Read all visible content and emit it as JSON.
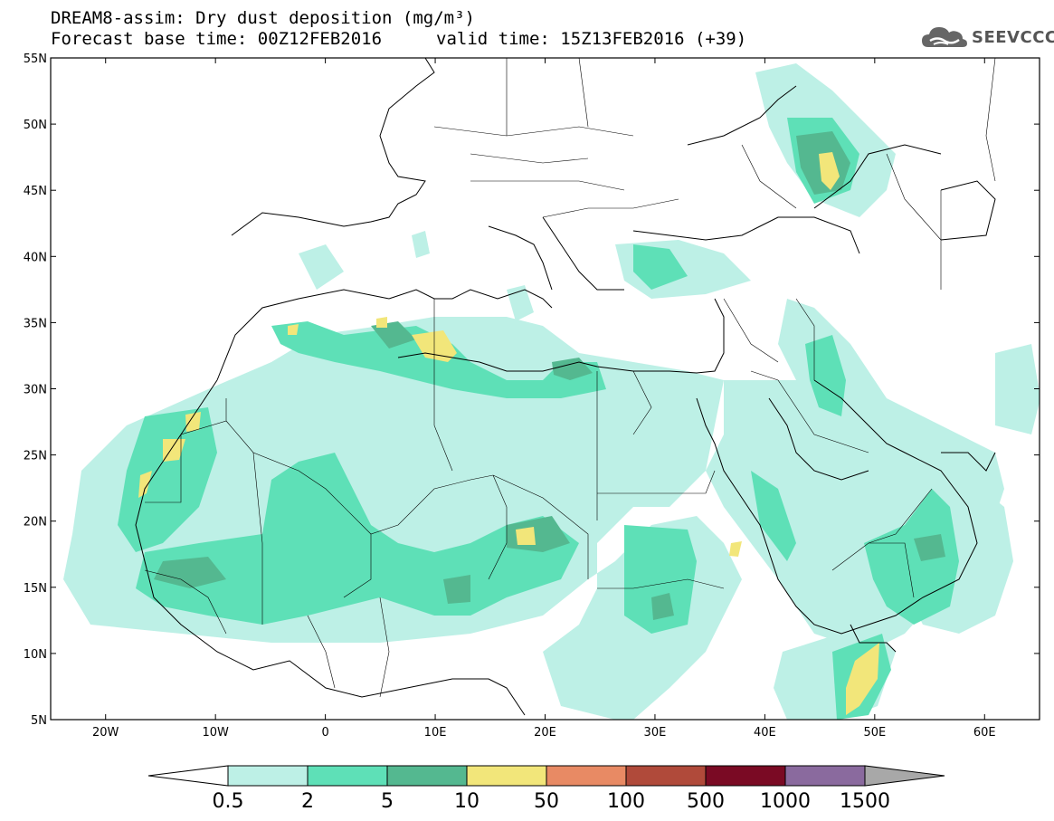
{
  "title_line1": "DREAM8-assim: Dry dust deposition (mg/m³)",
  "title_line2": "Forecast base time: 00Z12FEB2016",
  "valid_time": "valid time: 15Z13FEB2016 (+39)",
  "logo": {
    "icon": "cloud-logo-icon",
    "text": "SEEVCCC",
    "color": "#555555"
  },
  "map": {
    "lon_range": [
      -25,
      65
    ],
    "lat_range": [
      5,
      55
    ],
    "lat_ticks": [
      {
        "value": 55,
        "label": "55N"
      },
      {
        "value": 50,
        "label": "50N"
      },
      {
        "value": 45,
        "label": "45N"
      },
      {
        "value": 40,
        "label": "40N"
      },
      {
        "value": 35,
        "label": "35N"
      },
      {
        "value": 30,
        "label": "30N"
      },
      {
        "value": 25,
        "label": "25N"
      },
      {
        "value": 20,
        "label": "20N"
      },
      {
        "value": 15,
        "label": "15N"
      },
      {
        "value": 10,
        "label": "10N"
      },
      {
        "value": 5,
        "label": "5N"
      }
    ],
    "lon_ticks": [
      {
        "value": -20,
        "label": "20W"
      },
      {
        "value": -10,
        "label": "10W"
      },
      {
        "value": 0,
        "label": "0"
      },
      {
        "value": 10,
        "label": "10E"
      },
      {
        "value": 20,
        "label": "20E"
      },
      {
        "value": 30,
        "label": "30E"
      },
      {
        "value": 40,
        "label": "40E"
      },
      {
        "value": 50,
        "label": "50E"
      },
      {
        "value": 60,
        "label": "60E"
      }
    ]
  },
  "colorbar": {
    "colors": [
      "#bdf0e6",
      "#5ee0b7",
      "#54b890",
      "#f2e67a",
      "#e88a64",
      "#b04a3a",
      "#7a0a24",
      "#8a6a9e"
    ],
    "under_color": "#ffffff",
    "over_color": "#a8a8a8",
    "labels": [
      "0.5",
      "2",
      "5",
      "10",
      "50",
      "100",
      "500",
      "1000",
      "1500"
    ]
  }
}
